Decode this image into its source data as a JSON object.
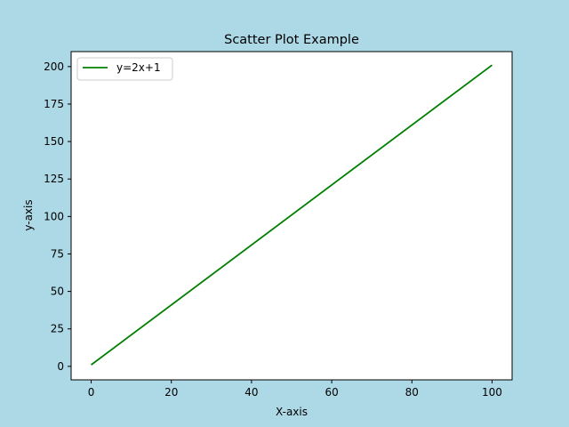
{
  "chart_data": {
    "type": "line",
    "title": "Scatter Plot Example",
    "xlabel": "X-axis",
    "ylabel": "y-axis",
    "xlim": [
      -5,
      105
    ],
    "ylim": [
      -9,
      210
    ],
    "xticks": [
      0,
      20,
      40,
      60,
      80,
      100
    ],
    "yticks": [
      0,
      25,
      50,
      75,
      100,
      125,
      150,
      175,
      200
    ],
    "grid": false,
    "legend_position": "top-left",
    "series": [
      {
        "name": "y=2x+1",
        "color": "#008000",
        "x": [
          0,
          100
        ],
        "y": [
          1,
          201
        ]
      }
    ]
  },
  "colors": {
    "figure_background": "#add8e6",
    "plot_background": "#ffffff"
  }
}
